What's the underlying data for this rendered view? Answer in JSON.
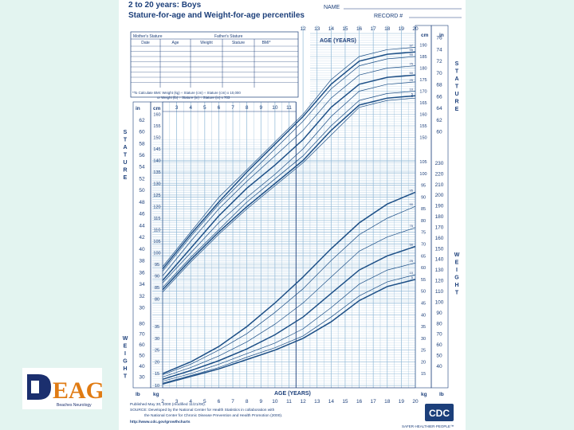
{
  "header": {
    "title_line1": "2 to 20 years: Boys",
    "title_line2": "Stature-for-age and Weight-for-age percentiles",
    "name_label": "NAME",
    "record_label": "RECORD #"
  },
  "record_table": {
    "mothers_stature": "Mother's Stature",
    "fathers_stature": "Father's Stature",
    "columns": [
      "Date",
      "Age",
      "Weight",
      "Stature",
      "BMI*"
    ],
    "note_line1": "*To Calculate BMI: Weight (kg) ÷ Stature (cm) ÷ Stature (cm) x 10,000",
    "note_line2": "or Weight (lb) ÷ Stature (in) ÷ Stature (in) x 703"
  },
  "axis_labels": {
    "age_title": "AGE (YEARS)",
    "stature_letters": [
      "S",
      "T",
      "A",
      "T",
      "U",
      "R",
      "E"
    ],
    "weight_letters": [
      "W",
      "E",
      "I",
      "G",
      "H",
      "T"
    ],
    "unit_in": "in",
    "unit_cm": "cm",
    "unit_lb": "lb",
    "unit_kg": "kg"
  },
  "footer": {
    "line1": "Published May 30, 2000 (modified 11/21/00).",
    "line2": "SOURCE: Developed by the National Center for Health Statistics in collaboration with",
    "line3": "the National Center for Chronic Disease Prevention and Health Promotion (2000).",
    "line4": "http://www.cdc.gov/growthcharts",
    "cdc_logo": "CDC",
    "cdc_tagline": "SAFER·HEALTHIER·PEOPLE™"
  },
  "brand_logo": {
    "text": "EAG",
    "tagline": "Beaches Neurology"
  },
  "colors": {
    "background": "#e3f4f0",
    "grid": "#8fb8d6",
    "curve": "#1d4f86",
    "accent": "#1c3f7a"
  },
  "chart_data": {
    "type": "line",
    "title": "Stature-for-age and Weight-for-age percentiles",
    "xlabel": "AGE (YEARS)",
    "x_ticks": [
      2,
      3,
      4,
      5,
      6,
      7,
      8,
      9,
      10,
      11,
      12,
      13,
      14,
      15,
      16,
      17,
      18,
      19,
      20
    ],
    "xlim": [
      2,
      20
    ],
    "percentiles": [
      "3",
      "5",
      "10",
      "25",
      "50",
      "75",
      "90",
      "95",
      "97"
    ],
    "stature": {
      "ylabel": "STATURE",
      "ylim_cm": [
        75,
        195
      ],
      "left_ticks_cm": [
        80,
        85,
        90,
        95,
        100,
        105,
        110,
        115,
        120,
        125,
        130,
        135,
        140,
        145,
        150,
        155,
        160
      ],
      "right_ticks_cm": [
        150,
        155,
        160,
        165,
        170,
        175,
        180,
        185,
        190
      ],
      "left_ticks_in": [
        30,
        32,
        34,
        36,
        38,
        40,
        42,
        44,
        46,
        48,
        50,
        52,
        54,
        56,
        58,
        60,
        62
      ],
      "right_ticks_in": [
        60,
        62,
        64,
        66,
        68,
        70,
        72,
        74,
        76
      ],
      "ages": [
        2,
        4,
        6,
        8,
        10,
        12,
        14,
        16,
        18,
        20
      ],
      "series": [
        {
          "name": "3",
          "values": [
            83,
            96,
            108,
            119,
            129,
            139,
            151,
            163,
            166,
            167
          ]
        },
        {
          "name": "5",
          "values": [
            84,
            97,
            109,
            120,
            130,
            140,
            153,
            164,
            167,
            168
          ]
        },
        {
          "name": "10",
          "values": [
            85,
            98,
            110,
            122,
            132,
            142,
            155,
            166,
            169,
            170
          ]
        },
        {
          "name": "25",
          "values": [
            87,
            100,
            113,
            124,
            134,
            145,
            159,
            170,
            173,
            174
          ]
        },
        {
          "name": "50",
          "values": [
            88,
            102,
            116,
            128,
            138,
            149,
            163,
            173,
            176,
            177
          ]
        },
        {
          "name": "75",
          "values": [
            90,
            105,
            119,
            131,
            142,
            153,
            167,
            177,
            180,
            181
          ]
        },
        {
          "name": "90",
          "values": [
            92,
            107,
            121,
            133,
            145,
            157,
            171,
            181,
            184,
            185
          ]
        },
        {
          "name": "95",
          "values": [
            93,
            108,
            122,
            135,
            147,
            159,
            173,
            183,
            186,
            187
          ]
        },
        {
          "name": "97",
          "values": [
            94,
            109,
            124,
            136,
            148,
            160,
            175,
            185,
            188,
            189
          ]
        }
      ]
    },
    "weight": {
      "ylabel": "WEIGHT",
      "ylim_kg": [
        9,
        106
      ],
      "left_ticks_kg": [
        10,
        15,
        20,
        25,
        30,
        35
      ],
      "right_ticks_kg": [
        15,
        20,
        25,
        30,
        35,
        40,
        45,
        50,
        55,
        60,
        65,
        70,
        75,
        80,
        85,
        90,
        95,
        100,
        105
      ],
      "left_ticks_lb": [
        30,
        40,
        50,
        60,
        70,
        80
      ],
      "right_ticks_lb": [
        40,
        50,
        60,
        70,
        80,
        90,
        100,
        110,
        120,
        130,
        140,
        150,
        160,
        170,
        180,
        190,
        200,
        210,
        220,
        230
      ],
      "ages": [
        2,
        4,
        6,
        8,
        10,
        12,
        14,
        16,
        18,
        20
      ],
      "series": [
        {
          "name": "5",
          "values": [
            10.6,
            13.8,
            17,
            21,
            25,
            30,
            37,
            46,
            52,
            55
          ]
        },
        {
          "name": "10",
          "values": [
            11,
            14.2,
            17.6,
            22,
            26,
            31,
            39,
            48,
            54,
            57
          ]
        },
        {
          "name": "25",
          "values": [
            11.8,
            15,
            19,
            23.5,
            28,
            34,
            43,
            53,
            59,
            62
          ]
        },
        {
          "name": "50",
          "values": [
            12.6,
            16.3,
            20.5,
            25.5,
            31.5,
            39,
            49,
            59,
            65,
            69
          ]
        },
        {
          "name": "75",
          "values": [
            13.6,
            17.6,
            22.5,
            28.5,
            36,
            45,
            56,
            67,
            73,
            77
          ]
        },
        {
          "name": "90",
          "values": [
            14.5,
            19,
            25,
            32,
            41,
            51,
            63,
            74,
            81,
            86
          ]
        },
        {
          "name": "95",
          "values": [
            15,
            20,
            26.5,
            35,
            45,
            56,
            68,
            79,
            87,
            92
          ]
        }
      ]
    }
  }
}
